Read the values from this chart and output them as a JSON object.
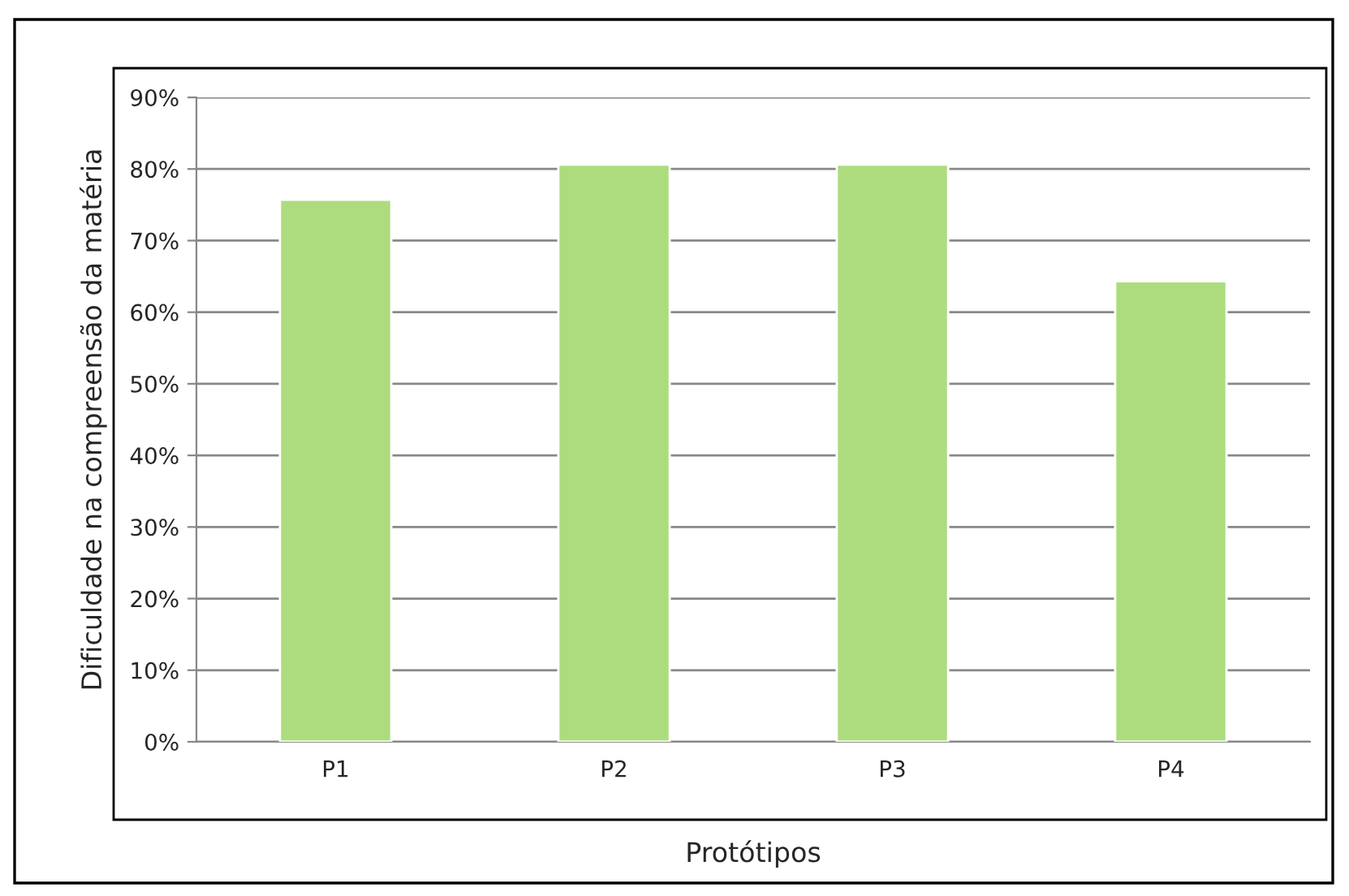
{
  "chart_data": {
    "type": "bar",
    "xlabel": "Protótipos",
    "ylabel": "Dificuldade na compreensão da matéria",
    "categories": [
      "P1",
      "P2",
      "P3",
      "P4"
    ],
    "values": [
      75.7,
      80.6,
      80.6,
      64.3
    ],
    "color": "#addc7e",
    "ylim": [
      0,
      90
    ],
    "yticks": [
      {
        "value": 0,
        "label": "0%"
      },
      {
        "value": 10,
        "label": "10%"
      },
      {
        "value": 20,
        "label": "20%"
      },
      {
        "value": 30,
        "label": "30%"
      },
      {
        "value": 40,
        "label": "40%"
      },
      {
        "value": 50,
        "label": "50%"
      },
      {
        "value": 60,
        "label": "60%"
      },
      {
        "value": 70,
        "label": "70%"
      },
      {
        "value": 80,
        "label": "80%"
      },
      {
        "value": 90,
        "label": "90%"
      }
    ],
    "grid": "y"
  }
}
